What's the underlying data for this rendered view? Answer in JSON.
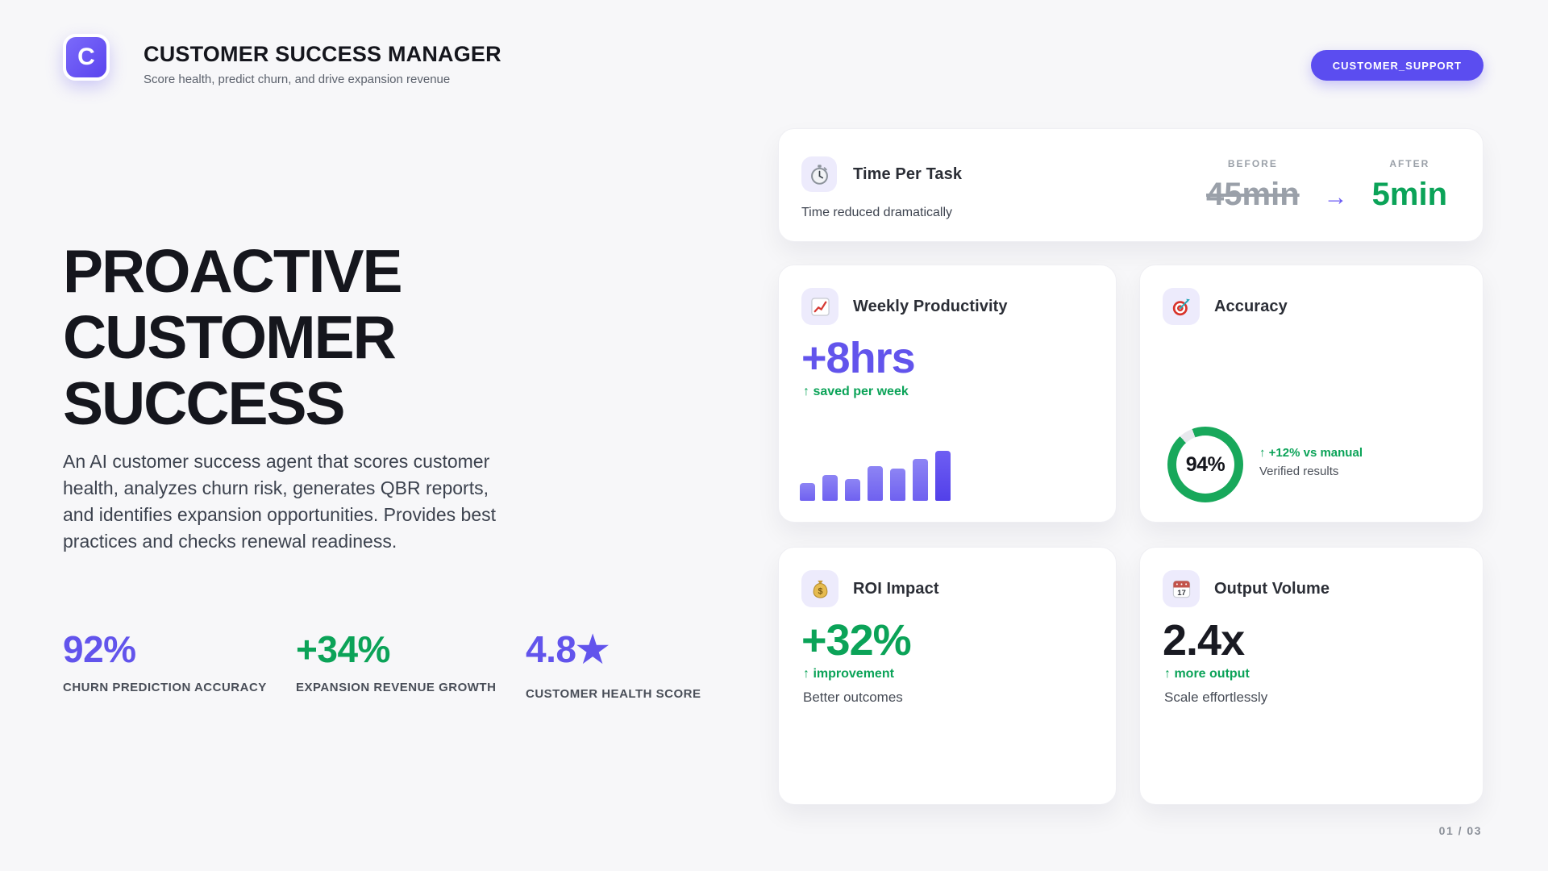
{
  "header": {
    "logo_letter": "C",
    "title": "CUSTOMER SUCCESS MANAGER",
    "subtitle": "Score health, predict churn, and drive expansion revenue",
    "badge": "CUSTOMER_SUPPORT"
  },
  "hero": {
    "heading_lines": [
      "PROACTIVE",
      "CUSTOMER",
      "SUCCESS"
    ],
    "description": "An AI customer success agent that scores customer health, analyzes churn risk, generates QBR reports, and identifies expansion opportunities. Provides best practices and checks renewal readiness.",
    "stats": [
      {
        "value": "92%",
        "label": "CHURN PREDICTION ACCURACY",
        "color": "#6254ec"
      },
      {
        "value": "+34%",
        "label": "EXPANSION REVENUE GROWTH",
        "color": "#0ba358"
      },
      {
        "value": "4.8★",
        "label": "CUSTOMER HEALTH SCORE",
        "color": "#6254ec"
      }
    ]
  },
  "cards": {
    "time_per_task": {
      "icon": "stopwatch-icon",
      "title": "Time Per Task",
      "caption": "Time reduced dramatically",
      "before_label": "BEFORE",
      "before_value": "45min",
      "arrow": "→",
      "after_label": "AFTER",
      "after_value": "5min"
    },
    "weekly_productivity": {
      "icon": "chart-increasing-icon",
      "title": "Weekly Productivity",
      "value": "+8hrs",
      "delta": "↑ saved per week",
      "chart_bars": [
        36,
        51,
        44,
        69,
        65,
        84,
        100
      ]
    },
    "accuracy": {
      "icon": "target-icon",
      "title": "Accuracy",
      "percent": 94,
      "percent_label": "94%",
      "delta": "↑ +12% vs manual",
      "caption": "Verified results"
    },
    "roi_impact": {
      "icon": "money-bag-icon",
      "title": "ROI Impact",
      "value": "+32%",
      "delta": "↑ improvement",
      "caption": "Better outcomes"
    },
    "output_volume": {
      "icon": "calendar-icon",
      "title": "Output Volume",
      "value": "2.4x",
      "delta": "↑ more output",
      "caption": "Scale effortlessly"
    }
  },
  "footer": {
    "page_indicator": "01 / 03"
  },
  "colors": {
    "accent_purple": "#6254ec",
    "green": "#0ba358",
    "strike_gray": "#9aa0a9",
    "bar_gradient_top": "#8d84f4",
    "bar_gradient_bottom": "#6f61f0",
    "bar_last": "#5240e9",
    "donut_green": "#18a85b",
    "donut_track": "#e7e8ed"
  }
}
